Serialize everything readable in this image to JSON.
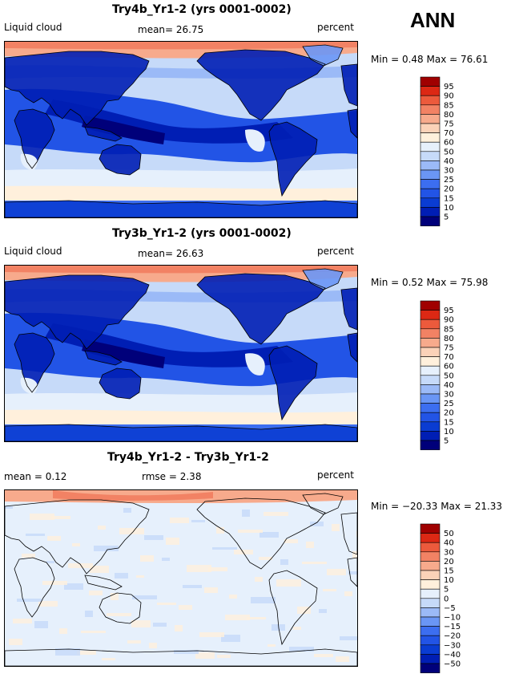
{
  "season": "ANN",
  "colors": {
    "abs_scale": [
      "#00007a",
      "#001eb4",
      "#0a3cd2",
      "#2254e6",
      "#3c6ef0",
      "#6a96f5",
      "#9bbaf7",
      "#c6daf9",
      "#e6f0fc",
      "#fff0dc",
      "#fbd2b8",
      "#f7aa8c",
      "#f28264",
      "#ec5a3c",
      "#dc2814",
      "#a00000"
    ],
    "diff_scale": [
      "#00007a",
      "#001eb4",
      "#0a3cd2",
      "#2254e6",
      "#3c6ef0",
      "#6a96f5",
      "#9bbaf7",
      "#c6daf9",
      "#e6f0fc",
      "#fff0dc",
      "#fbd2b8",
      "#f7aa8c",
      "#f28264",
      "#ec5a3c",
      "#dc2814",
      "#a00000"
    ]
  },
  "chart_data": [
    {
      "type": "heatmap",
      "title": "Try4b_Yr1-2 (yrs 0001-0002)",
      "left_label": "Liquid cloud",
      "mean_text": "mean=   26.75",
      "units": "percent",
      "mean": 26.75,
      "min": 0.48,
      "max": 76.61,
      "minmax_text": "Min =    0.48 Max =   76.61",
      "colorbar_levels": [
        "95",
        "90",
        "85",
        "80",
        "75",
        "70",
        "60",
        "50",
        "40",
        "30",
        "25",
        "20",
        "15",
        "10",
        "5"
      ]
    },
    {
      "type": "heatmap",
      "title": "Try3b_Yr1-2 (yrs 0001-0002)",
      "left_label": "Liquid cloud",
      "mean_text": "mean=   26.63",
      "units": "percent",
      "mean": 26.63,
      "min": 0.52,
      "max": 75.98,
      "minmax_text": "Min =    0.52 Max =   75.98",
      "colorbar_levels": [
        "95",
        "90",
        "85",
        "80",
        "75",
        "70",
        "60",
        "50",
        "40",
        "30",
        "25",
        "20",
        "15",
        "10",
        "5"
      ]
    },
    {
      "type": "heatmap",
      "title": "Try4b_Yr1-2 - Try3b_Yr1-2",
      "left_label": "mean =    0.12",
      "mean_text": "rmse =    2.38",
      "units": "percent",
      "mean": 0.12,
      "rmse": 2.38,
      "min": -20.33,
      "max": 21.33,
      "minmax_text": "Min = −20.33 Max =   21.33",
      "colorbar_levels": [
        "50",
        "40",
        "30",
        "20",
        "15",
        "10",
        "5",
        "0",
        "−5",
        "−10",
        "−15",
        "−20",
        "−30",
        "−40",
        "−50"
      ]
    }
  ]
}
